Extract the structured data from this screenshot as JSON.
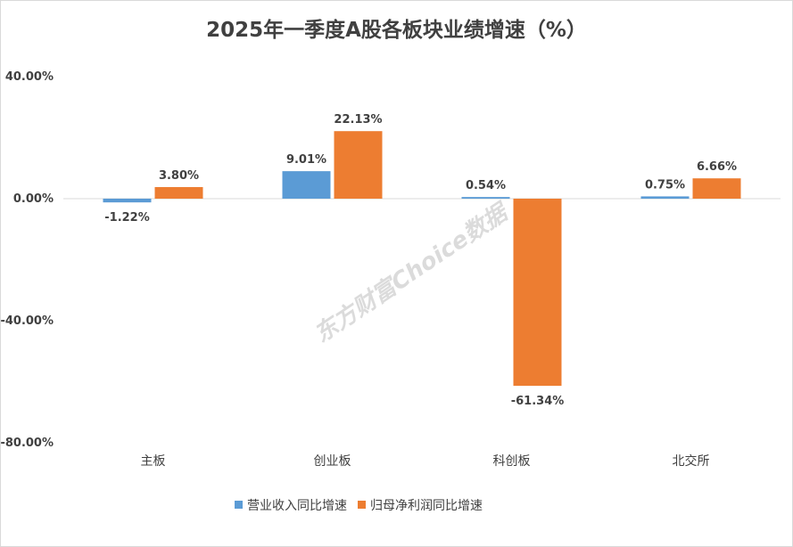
{
  "chart_data": {
    "type": "bar",
    "title": "2025年一季度A股各板块业绩增速（%）",
    "categories": [
      "主板",
      "创业板",
      "科创板",
      "北交所"
    ],
    "series": [
      {
        "name": "营业收入同比增速",
        "values": [
          -1.22,
          9.01,
          0.54,
          0.75
        ],
        "color": "#5B9BD5"
      },
      {
        "name": "归母净利润同比增速",
        "values": [
          3.8,
          22.13,
          -61.34,
          6.66
        ],
        "color": "#ED7D31"
      }
    ],
    "data_labels": [
      [
        "-1.22%",
        "9.01%",
        "0.54%",
        "0.75%"
      ],
      [
        "3.80%",
        "22.13%",
        "-61.34%",
        "6.66%"
      ]
    ],
    "yticks": [
      40,
      0,
      -40,
      -80
    ],
    "ytick_labels": [
      "40.00%",
      "0.00%",
      "-40.00%",
      "-80.00%"
    ],
    "ylim": [
      -80,
      40
    ],
    "xlabel": "",
    "ylabel": "",
    "legend_position": "bottom",
    "grid": false,
    "watermark": "东方财富Choice数据"
  }
}
